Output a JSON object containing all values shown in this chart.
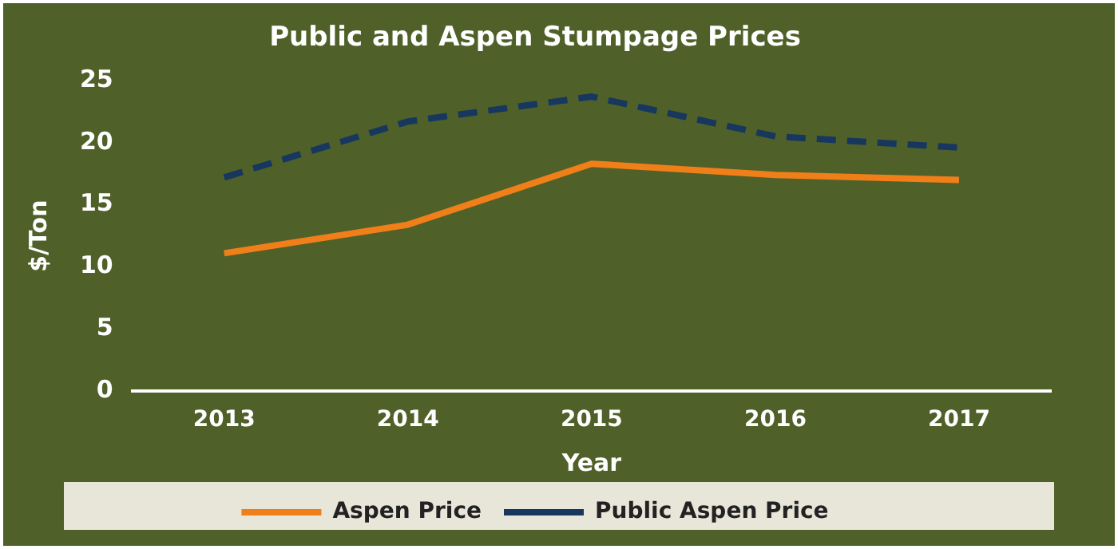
{
  "chart_data": {
    "type": "line",
    "title": "Public and Aspen Stumpage Prices",
    "xlabel": "Year",
    "ylabel": "$/Ton",
    "categories": [
      "2013",
      "2014",
      "2015",
      "2016",
      "2017"
    ],
    "series": [
      {
        "name": "Aspen Price",
        "color": "#f07f1a",
        "values": [
          11.1,
          13.4,
          18.3,
          17.4,
          17.0
        ],
        "line_style": "solid"
      },
      {
        "name": "Public Aspen Price",
        "color": "#17375e",
        "values": [
          17.2,
          21.7,
          23.7,
          20.5,
          19.6
        ],
        "line_style": "dashed"
      }
    ],
    "ylim": [
      0,
      25
    ],
    "yticks": [
      0,
      5,
      10,
      15,
      20,
      25
    ],
    "grid": false,
    "legend": "bottom",
    "marker": "none"
  }
}
